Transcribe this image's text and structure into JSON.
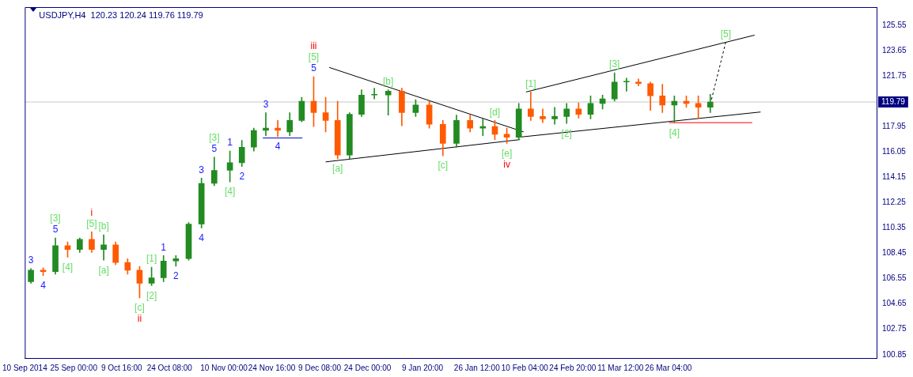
{
  "chart_data": {
    "type": "candlestick",
    "title": "USDJPY,H4  120.23 120.24 119.76 119.79",
    "xlim": [
      "2014-09-10T00:00",
      "2015-05-28T23:00"
    ],
    "ylim": [
      100.6,
      126.9
    ],
    "xticks": [
      {
        "value": "2014-09-10",
        "label": "10 Sep 2014"
      },
      {
        "value": "2014-09-25T00:00",
        "label": "25 Sep 00:00"
      },
      {
        "value": "2014-10-09T16:00",
        "label": "9 Oct 16:00"
      },
      {
        "value": "2014-10-24T08:00",
        "label": "24 Oct 08:00"
      },
      {
        "value": "2014-11-10T00:00",
        "label": "10 Nov 00:00"
      },
      {
        "value": "2014-11-24T16:00",
        "label": "24 Nov 16:00"
      },
      {
        "value": "2014-12-09T08:00",
        "label": "9 Dec 08:00"
      },
      {
        "value": "2014-12-24T00:00",
        "label": "24 Dec 00:00"
      },
      {
        "value": "2015-01-09T20:00",
        "label": "9 Jan 20:00"
      },
      {
        "value": "2015-01-26T12:00",
        "label": "26 Jan 12:00"
      },
      {
        "value": "2015-02-10T04:00",
        "label": "10 Feb 04:00"
      },
      {
        "value": "2015-02-24T20:00",
        "label": "24 Feb 20:00"
      },
      {
        "value": "2015-03-11T12:00",
        "label": "11 Mar 12:00"
      },
      {
        "value": "2015-03-26T04:00",
        "label": "26 Mar 04:00"
      }
    ],
    "yticks": [
      100.85,
      102.75,
      104.65,
      106.55,
      108.45,
      110.35,
      112.25,
      114.15,
      116.05,
      117.95,
      121.75,
      123.65,
      125.55
    ],
    "ref_lines": [
      {
        "axis": "y",
        "value": 119.79,
        "label": "119.79",
        "color": "#c8c8c8"
      }
    ],
    "series": [
      {
        "x": [
          "2014-09-11T21:00",
          "2014-09-15T15:00",
          "2014-09-19T09:00",
          "2014-09-23T03:00",
          "2014-09-26T20:00",
          "2014-09-30T12:00",
          "2014-10-04T04:00",
          "2014-10-07T20:00",
          "2014-10-11T12:00",
          "2014-10-15T04:00",
          "2014-10-18T20:00",
          "2014-10-22T12:00",
          "2014-10-26T07:00",
          "2014-10-30T05:00",
          "2014-11-03T03:00",
          "2014-11-07T01:00",
          "2014-11-11T20:00",
          "2014-11-15T12:00",
          "2014-11-19T04:00",
          "2014-11-22T20:00",
          "2014-11-26T12:00",
          "2014-11-30T04:00",
          "2014-12-03T20:00",
          "2014-12-07T12:00",
          "2014-12-11T04:00",
          "2014-12-14T20:00",
          "2014-12-18T12:00",
          "2014-12-22T04:00",
          "2014-12-26T02:00",
          "2014-12-30T08:00",
          "2015-01-03T12:00",
          "2015-01-07T18:00",
          "2015-01-11T22:00",
          "2015-01-16T02:00",
          "2015-01-20T06:00",
          "2015-01-24T10:00",
          "2015-01-28T08:00",
          "2015-02-01T00:00",
          "2015-02-04T16:00",
          "2015-02-08T08:00",
          "2015-02-12T00:00",
          "2015-02-15T16:00",
          "2015-02-19T08:00",
          "2015-02-23T00:00",
          "2015-02-26T16:00",
          "2015-03-02T08:00",
          "2015-03-06T00:00",
          "2015-03-09T16:00",
          "2015-03-13T08:00",
          "2015-03-17T00:00",
          "2015-03-20T16:00",
          "2015-03-24T08:00",
          "2015-03-28T00:00",
          "2015-03-31T16:00",
          "2015-04-04T08:00",
          "2015-04-08T00:00"
        ],
        "ohlc": [
          [
            106.32,
            107.3,
            106.2,
            107.18
          ],
          [
            107.18,
            107.36,
            106.78,
            107.07
          ],
          [
            107.07,
            109.6,
            106.89,
            109.02
          ],
          [
            109.02,
            109.31,
            108.16,
            108.74
          ],
          [
            108.74,
            109.6,
            108.51,
            109.49
          ],
          [
            109.49,
            110.06,
            108.51,
            108.74
          ],
          [
            108.74,
            109.83,
            107.93,
            109.08
          ],
          [
            109.08,
            109.31,
            107.59,
            107.76
          ],
          [
            107.76,
            108.05,
            106.89,
            107.18
          ],
          [
            107.18,
            107.47,
            105.11,
            106.2
          ],
          [
            106.2,
            107.41,
            106.03,
            106.61
          ],
          [
            106.61,
            108.28,
            106.32,
            107.87
          ],
          [
            107.87,
            108.28,
            107.47,
            108.05
          ],
          [
            108.05,
            110.75,
            107.93,
            110.64
          ],
          [
            110.64,
            114.09,
            110.35,
            113.69
          ],
          [
            113.69,
            115.65,
            113.52,
            114.67
          ],
          [
            114.67,
            116.11,
            113.8,
            115.24
          ],
          [
            115.24,
            116.91,
            114.96,
            116.4
          ],
          [
            116.4,
            117.83,
            116.11,
            117.66
          ],
          [
            117.66,
            118.99,
            117.26,
            117.83
          ],
          [
            117.83,
            118.41,
            117.2,
            117.66
          ],
          [
            117.55,
            118.99,
            117.26,
            118.41
          ],
          [
            118.41,
            120.14,
            118.3,
            119.85
          ],
          [
            119.85,
            121.69,
            117.95,
            118.99
          ],
          [
            118.99,
            120.14,
            117.55,
            118.41
          ],
          [
            118.41,
            119.85,
            115.53,
            115.82
          ],
          [
            115.82,
            118.99,
            115.53,
            118.87
          ],
          [
            118.87,
            120.71,
            118.7,
            120.31
          ],
          [
            120.31,
            120.83,
            120.02,
            120.31
          ],
          [
            120.31,
            120.71,
            118.81,
            120.6
          ],
          [
            120.6,
            120.83,
            118.01,
            118.99
          ],
          [
            118.99,
            119.97,
            118.7,
            119.56
          ],
          [
            119.56,
            119.85,
            117.83,
            118.12
          ],
          [
            118.12,
            118.41,
            115.76,
            116.68
          ],
          [
            116.68,
            118.81,
            116.4,
            118.41
          ],
          [
            118.41,
            118.81,
            117.55,
            117.83
          ],
          [
            117.83,
            118.53,
            117.26,
            117.95
          ],
          [
            117.95,
            118.41,
            116.97,
            117.37
          ],
          [
            117.37,
            117.83,
            116.68,
            117.14
          ],
          [
            117.14,
            119.68,
            116.97,
            119.27
          ],
          [
            119.27,
            120.54,
            118.41,
            118.7
          ],
          [
            118.7,
            119.27,
            118.24,
            118.53
          ],
          [
            118.53,
            119.39,
            118.12,
            118.7
          ],
          [
            118.7,
            119.68,
            118.18,
            119.27
          ],
          [
            119.27,
            119.73,
            118.58,
            118.87
          ],
          [
            118.87,
            120.25,
            118.53,
            119.68
          ],
          [
            119.68,
            120.31,
            119.27,
            120.02
          ],
          [
            120.02,
            121.98,
            119.85,
            121.29
          ],
          [
            121.29,
            121.58,
            120.6,
            121.29
          ],
          [
            121.29,
            121.52,
            121.0,
            121.17
          ],
          [
            121.17,
            121.29,
            119.16,
            120.25
          ],
          [
            120.25,
            121.12,
            118.99,
            119.56
          ],
          [
            119.56,
            120.25,
            118.24,
            119.85
          ],
          [
            119.85,
            120.25,
            119.39,
            119.68
          ],
          [
            119.68,
            120.25,
            118.58,
            119.39
          ],
          [
            119.39,
            120.37,
            118.99,
            119.79
          ]
        ],
        "colors": [
          "#228b22",
          "#ff5a00",
          "#228b22",
          "#ff5a00",
          "#228b22",
          "#ff5a00",
          "#228b22",
          "#ff5a00",
          "#ff5a00",
          "#ff5a00",
          "#228b22",
          "#228b22",
          "#228b22",
          "#228b22",
          "#228b22",
          "#228b22",
          "#228b22",
          "#228b22",
          "#228b22",
          "#228b22",
          "#ff5a00",
          "#228b22",
          "#228b22",
          "#ff5a00",
          "#ff5a00",
          "#ff5a00",
          "#228b22",
          "#228b22",
          "#228b22",
          "#228b22",
          "#ff5a00",
          "#228b22",
          "#ff5a00",
          "#ff5a00",
          "#228b22",
          "#ff5a00",
          "#228b22",
          "#ff5a00",
          "#ff5a00",
          "#228b22",
          "#ff5a00",
          "#ff5a00",
          "#228b22",
          "#228b22",
          "#ff5a00",
          "#228b22",
          "#228b22",
          "#228b22",
          "#228b22",
          "#ff5a00",
          "#ff5a00",
          "#ff5a00",
          "#228b22",
          "#ff5a00",
          "#ff5a00",
          "#228b22"
        ]
      },
      {
        "type": "line",
        "x": [
          "2014-12-12T06:00",
          "2015-02-09T19:00"
        ],
        "values": [
          122.38,
          117.55
        ],
        "color": "#000000",
        "line_style": "solid"
      },
      {
        "type": "line",
        "x": [
          "2014-12-11T04:00",
          "2015-02-08T17:00"
        ],
        "values": [
          115.3,
          116.97
        ],
        "color": "#000000",
        "line_style": "solid"
      },
      {
        "type": "line",
        "x": [
          "2015-02-10T13:00",
          "2015-04-21T14:00"
        ],
        "values": [
          120.54,
          124.8
        ],
        "color": "#000000",
        "line_style": "solid"
      },
      {
        "type": "line",
        "x": [
          "2015-02-07T23:00",
          "2015-04-23T10:00"
        ],
        "values": [
          117.14,
          119.04
        ],
        "color": "#000000",
        "line_style": "solid"
      },
      {
        "type": "line",
        "x": [
          "2014-11-21T22:00",
          "2014-12-04T01:00"
        ],
        "values": [
          117.09,
          117.09
        ],
        "color": "#0000cd",
        "line_style": "solid"
      },
      {
        "type": "line",
        "x": [
          "2015-03-26T09:00",
          "2015-04-20T20:00"
        ],
        "values": [
          118.24,
          118.24
        ],
        "color": "#ff0000",
        "line_style": "solid"
      },
      {
        "type": "line",
        "x": [
          "2015-04-08T09:00",
          "2015-04-12T18:00"
        ],
        "values": [
          119.97,
          124.28
        ],
        "color": "#000000",
        "line_style": "dashed"
      }
    ],
    "annotations": [
      {
        "text": "3",
        "x": "2014-09-11T21:00",
        "y": 107.3
      },
      {
        "text": "4",
        "x": "2014-09-15T15:00",
        "y": 106.78
      },
      {
        "text": "5",
        "x": "2014-09-19T09:00",
        "y": 109.6
      },
      {
        "text": "[3]",
        "x": "2014-09-19T09:00",
        "y": 109.6
      },
      {
        "text": "[4]",
        "x": "2014-09-23T03:00",
        "y": 108.16
      },
      {
        "text": "[5]",
        "x": "2014-09-30T12:00",
        "y": 110.06
      },
      {
        "text": "i",
        "x": "2014-09-30T12:00",
        "y": 110.06
      },
      {
        "text": "[a]",
        "x": "2014-10-04T04:00",
        "y": 107.93
      },
      {
        "text": "[b]",
        "x": "2014-10-04T04:00",
        "y": 109.83
      },
      {
        "text": "[c]",
        "x": "2014-10-15T04:00",
        "y": 105.11
      },
      {
        "text": "ii",
        "x": "2014-10-15T04:00",
        "y": 105.11
      },
      {
        "text": "[1]",
        "x": "2014-10-18T20:00",
        "y": 107.41
      },
      {
        "text": "[2]",
        "x": "2014-10-18T20:00",
        "y": 106.03
      },
      {
        "text": "1",
        "x": "2014-10-22T12:00",
        "y": 108.28
      },
      {
        "text": "2",
        "x": "2014-10-26T07:00",
        "y": 107.47
      },
      {
        "text": "3",
        "x": "2014-11-03T03:00",
        "y": 114.09
      },
      {
        "text": "4",
        "x": "2014-11-03T03:00",
        "y": 110.35
      },
      {
        "text": "5",
        "x": "2014-11-07T01:00",
        "y": 115.65
      },
      {
        "text": "[3]",
        "x": "2014-11-07T01:00",
        "y": 115.65
      },
      {
        "text": "[4]",
        "x": "2014-11-11T20:00",
        "y": 113.8
      },
      {
        "text": "1",
        "x": "2014-11-11T20:00",
        "y": 116.11
      },
      {
        "text": "2",
        "x": "2014-11-15T12:00",
        "y": 114.96
      },
      {
        "text": "3",
        "x": "2014-11-22T20:00",
        "y": 118.99
      },
      {
        "text": "4",
        "x": "2014-11-26T12:00",
        "y": 117.2
      },
      {
        "text": "5",
        "x": "2014-12-07T12:00",
        "y": 121.69
      },
      {
        "text": "[5]",
        "x": "2014-12-07T12:00",
        "y": 121.69
      },
      {
        "text": "iii",
        "x": "2014-12-07T12:00",
        "y": 121.69
      },
      {
        "text": "[a]",
        "x": "2014-12-14T20:00",
        "y": 115.53
      },
      {
        "text": "[b]",
        "x": "2014-12-30T08:00",
        "y": 120.71
      },
      {
        "text": "[c]",
        "x": "2015-01-16T02:00",
        "y": 115.76
      },
      {
        "text": "[d]",
        "x": "2015-02-01T00:00",
        "y": 118.41
      },
      {
        "text": "[e]",
        "x": "2015-02-04T16:00",
        "y": 116.68
      },
      {
        "text": "iv",
        "x": "2015-02-04T16:00",
        "y": 116.68
      },
      {
        "text": "[1]",
        "x": "2015-02-12T00:00",
        "y": 120.54
      },
      {
        "text": "[2]",
        "x": "2015-02-23T00:00",
        "y": 118.18
      },
      {
        "text": "[3]",
        "x": "2015-03-09T16:00",
        "y": 121.98
      },
      {
        "text": "[4]",
        "x": "2015-03-28T00:00",
        "y": 118.24
      },
      {
        "text": "[5]",
        "x": "2015-04-12T18:00",
        "y": 124.28
      }
    ]
  }
}
